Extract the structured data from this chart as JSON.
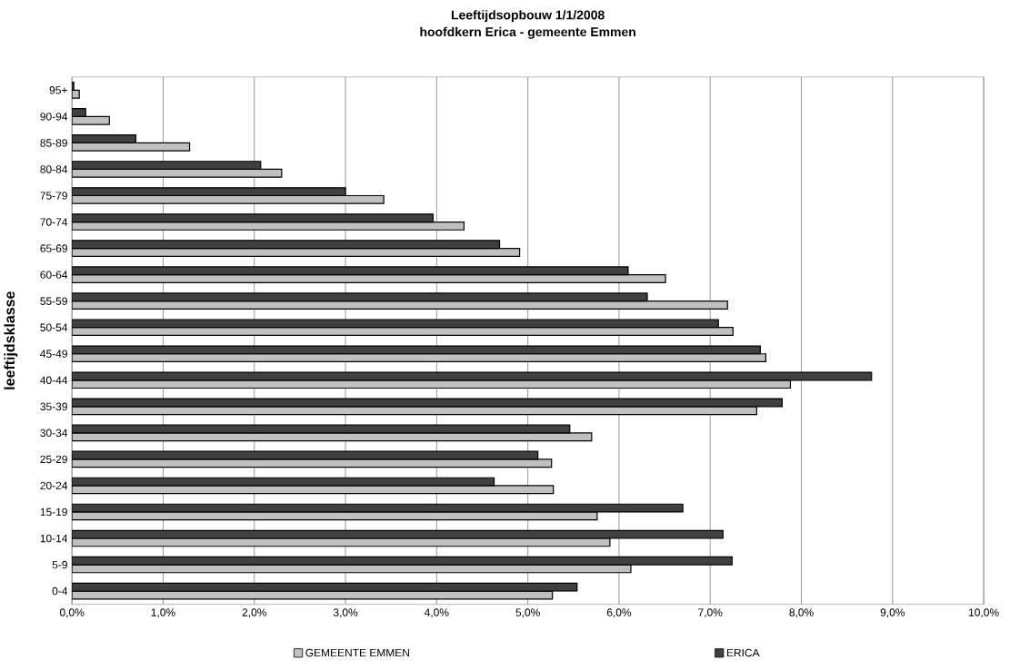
{
  "chart_data": {
    "type": "bar",
    "orientation": "horizontal",
    "title": "Leeftijdsopbouw 1/1/2008",
    "subtitle": "hoofdkern Erica - gemeente Emmen",
    "ylabel": "leeftijdsklasse",
    "categories": [
      "95+",
      "90-94",
      "85-89",
      "80-84",
      "75-79",
      "70-74",
      "65-69",
      "60-64",
      "55-59",
      "50-54",
      "45-49",
      "40-44",
      "35-39",
      "30-34",
      "25-29",
      "20-24",
      "15-19",
      "10-14",
      "5-9",
      "0-4"
    ],
    "series": [
      {
        "name": "GEMEENTE EMMEN",
        "color": "#c0c0c0",
        "values": [
          0.08,
          0.41,
          1.29,
          2.3,
          3.42,
          4.3,
          4.91,
          6.51,
          7.19,
          7.25,
          7.61,
          7.88,
          7.51,
          5.7,
          5.26,
          5.28,
          5.76,
          5.9,
          6.13,
          5.27
        ]
      },
      {
        "name": "ERICA",
        "color": "#404040",
        "values": [
          0.02,
          0.15,
          0.7,
          2.07,
          3.0,
          3.96,
          4.69,
          6.1,
          6.31,
          7.09,
          7.55,
          8.77,
          7.79,
          5.46,
          5.11,
          4.63,
          6.7,
          7.14,
          7.24,
          5.54
        ]
      }
    ],
    "xlim": [
      0,
      10
    ],
    "xticks": [
      {
        "value": 0,
        "label": "0,0%"
      },
      {
        "value": 1,
        "label": "1,0%"
      },
      {
        "value": 2,
        "label": "2,0%"
      },
      {
        "value": 3,
        "label": "3,0%"
      },
      {
        "value": 4,
        "label": "4,0%"
      },
      {
        "value": 5,
        "label": "5,0%"
      },
      {
        "value": 6,
        "label": "6,0%"
      },
      {
        "value": 7,
        "label": "7,0%"
      },
      {
        "value": 8,
        "label": "8,0%"
      },
      {
        "value": 9,
        "label": "9,0%"
      },
      {
        "value": 10,
        "label": "10,0%"
      }
    ],
    "grid": "x",
    "legend": "bottom"
  }
}
